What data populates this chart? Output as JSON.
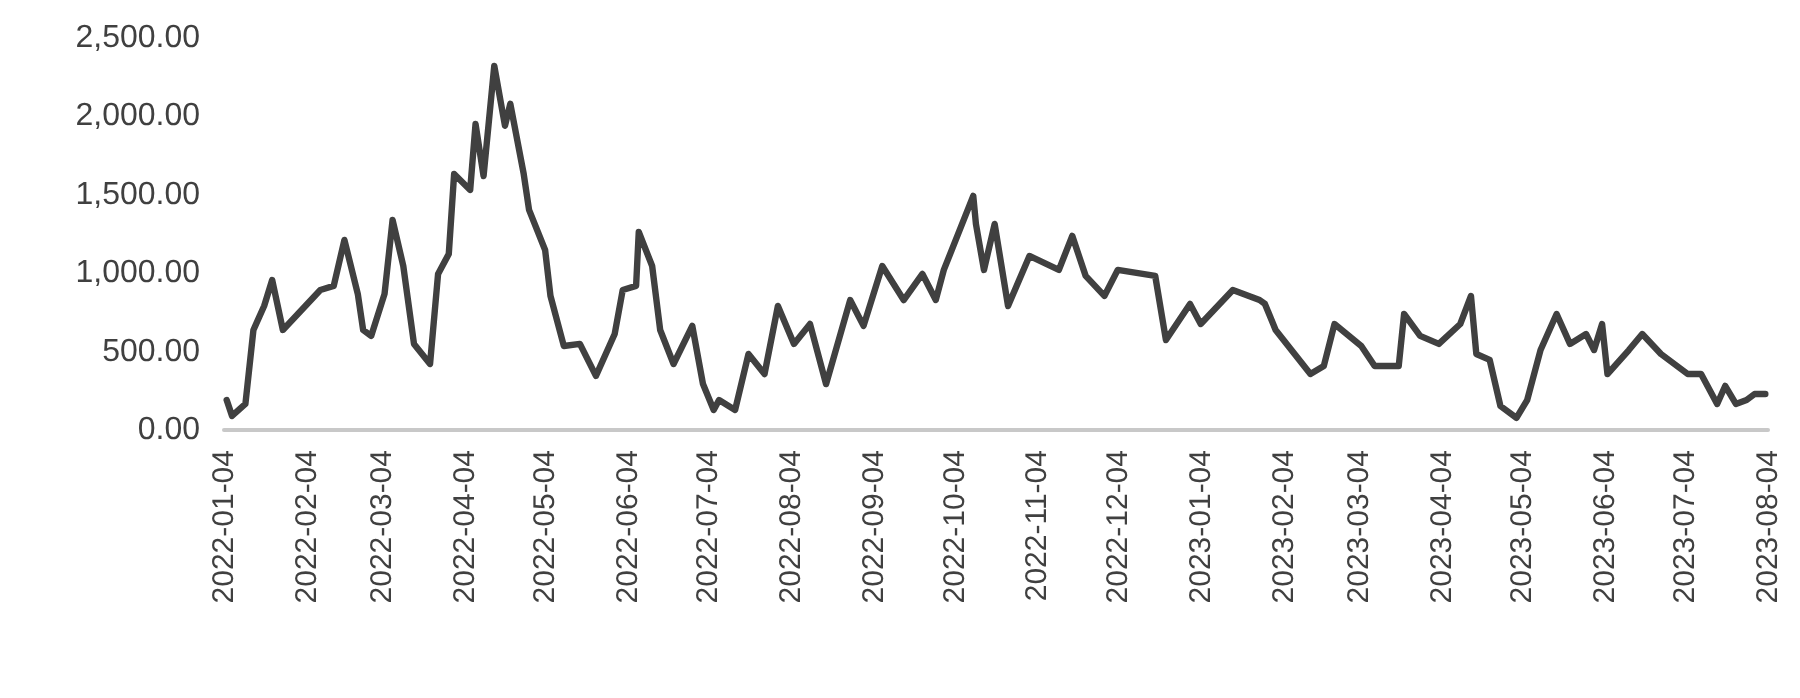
{
  "chart_data": {
    "type": "line",
    "xlim": [
      "2022-01-04",
      "2023-08-04"
    ],
    "xticks": [
      "2022-01-04",
      "2022-02-04",
      "2022-03-04",
      "2022-04-04",
      "2022-05-04",
      "2022-06-04",
      "2022-07-04",
      "2022-08-04",
      "2022-09-04",
      "2022-10-04",
      "2022-11-04",
      "2022-12-04",
      "2023-01-04",
      "2023-02-04",
      "2023-03-04",
      "2023-04-04",
      "2023-05-04",
      "2023-06-04",
      "2023-07-04",
      "2023-08-04"
    ],
    "ylim": [
      0,
      2500
    ],
    "yticks": [
      {
        "value": 0,
        "label": "0.00"
      },
      {
        "value": 500,
        "label": "500.00"
      },
      {
        "value": 1000,
        "label": "1,000.00"
      },
      {
        "value": 1500,
        "label": "1,500.00"
      },
      {
        "value": 2000,
        "label": "2,000.00"
      },
      {
        "value": 2500,
        "label": "2,500.00"
      }
    ],
    "marker": "none",
    "line_style": "solid",
    "series": [
      {
        "color": "#404040",
        "x": [
          "2022-01-05",
          "2022-01-07",
          "2022-01-12",
          "2022-01-15",
          "2022-01-19",
          "2022-01-22",
          "2022-01-26",
          "2022-02-09",
          "2022-02-14",
          "2022-02-18",
          "2022-02-23",
          "2022-02-25",
          "2022-02-28",
          "2022-03-05",
          "2022-03-08",
          "2022-03-12",
          "2022-03-16",
          "2022-03-22",
          "2022-03-25",
          "2022-03-29",
          "2022-03-31",
          "2022-04-06",
          "2022-04-08",
          "2022-04-11",
          "2022-04-15",
          "2022-04-19",
          "2022-04-21",
          "2022-04-26",
          "2022-04-28",
          "2022-05-04",
          "2022-05-06",
          "2022-05-11",
          "2022-05-17",
          "2022-05-23",
          "2022-05-30",
          "2022-06-02",
          "2022-06-07",
          "2022-06-08",
          "2022-06-13",
          "2022-06-16",
          "2022-06-21",
          "2022-06-28",
          "2022-07-02",
          "2022-07-06",
          "2022-07-08",
          "2022-07-14",
          "2022-07-19",
          "2022-07-25",
          "2022-07-30",
          "2022-08-05",
          "2022-08-11",
          "2022-08-17",
          "2022-08-26",
          "2022-08-31",
          "2022-09-07",
          "2022-09-15",
          "2022-09-22",
          "2022-09-27",
          "2022-09-30",
          "2022-10-11",
          "2022-10-12",
          "2022-10-15",
          "2022-10-19",
          "2022-10-24",
          "2022-11-01",
          "2022-11-12",
          "2022-11-17",
          "2022-11-22",
          "2022-11-29",
          "2022-12-04",
          "2022-12-18",
          "2022-12-22",
          "2022-12-31",
          "2023-01-04",
          "2023-01-16",
          "2023-01-26",
          "2023-01-28",
          "2023-02-01",
          "2023-02-14",
          "2023-02-19",
          "2023-02-23",
          "2023-03-05",
          "2023-03-10",
          "2023-03-19",
          "2023-03-21",
          "2023-03-27",
          "2023-04-03",
          "2023-04-11",
          "2023-04-15",
          "2023-04-17",
          "2023-04-22",
          "2023-04-26",
          "2023-05-02",
          "2023-05-06",
          "2023-05-11",
          "2023-05-17",
          "2023-05-22",
          "2023-05-28",
          "2023-05-31",
          "2023-06-03",
          "2023-06-05",
          "2023-06-13",
          "2023-06-18",
          "2023-06-25",
          "2023-07-05",
          "2023-07-10",
          "2023-07-16",
          "2023-07-19",
          "2023-07-23",
          "2023-07-27",
          "2023-07-30",
          "2023-08-03"
        ],
        "values": [
          191,
          90,
          166,
          638,
          791,
          957,
          638,
          893,
          919,
          1212,
          868,
          638,
          600,
          868,
          1340,
          1046,
          549,
          421,
          995,
          1123,
          1633,
          1531,
          1952,
          1620,
          2322,
          1940,
          2080,
          1633,
          1404,
          1148,
          855,
          536,
          549,
          345,
          612,
          893,
          919,
          1263,
          1046,
          638,
          421,
          664,
          293,
          128,
          191,
          128,
          485,
          357,
          791,
          549,
          676,
          293,
          829,
          664,
          1046,
          829,
          995,
          829,
          1021,
          1493,
          1314,
          1021,
          1314,
          791,
          1110,
          1021,
          1238,
          983,
          855,
          1021,
          983,
          574,
          804,
          676,
          893,
          829,
          804,
          638,
          357,
          408,
          676,
          536,
          408,
          408,
          740,
          600,
          549,
          676,
          855,
          485,
          447,
          153,
          77,
          191,
          510,
          740,
          549,
          612,
          510,
          676,
          357,
          510,
          612,
          485,
          357,
          357,
          166,
          281,
          166,
          191,
          230,
          230
        ]
      }
    ]
  }
}
